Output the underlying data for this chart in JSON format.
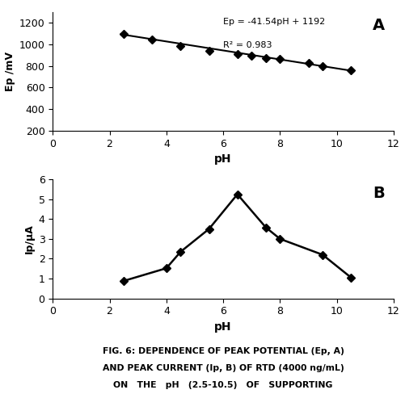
{
  "plot_A": {
    "ph_values": [
      2.5,
      3.5,
      4.5,
      5.5,
      6.5,
      7.0,
      7.5,
      8.0,
      9.0,
      9.5,
      10.5
    ],
    "ep_values": [
      1098,
      1045,
      980,
      940,
      910,
      895,
      875,
      862,
      825,
      800,
      762
    ],
    "equation": "Ep = -41.54pH + 1192",
    "r2": "R² = 0.983",
    "xlabel": "pH",
    "ylabel": "Ep /mV",
    "xlim": [
      0,
      12
    ],
    "ylim": [
      200,
      1300
    ],
    "yticks": [
      200,
      400,
      600,
      800,
      1000,
      1200
    ],
    "xticks": [
      0,
      2,
      4,
      6,
      8,
      10,
      12
    ],
    "label": "A",
    "slope": -41.54,
    "intercept": 1192
  },
  "plot_B": {
    "ph_values": [
      2.5,
      4.0,
      4.5,
      5.5,
      6.5,
      7.5,
      8.0,
      9.5,
      10.5
    ],
    "ip_values": [
      0.88,
      1.52,
      2.35,
      3.5,
      5.25,
      3.58,
      3.0,
      2.2,
      1.05
    ],
    "xlabel": "pH",
    "ylabel": "Ip/μA",
    "xlim": [
      0,
      12
    ],
    "ylim": [
      0,
      6
    ],
    "yticks": [
      0,
      1,
      2,
      3,
      4,
      5,
      6
    ],
    "xticks": [
      0,
      2,
      4,
      6,
      8,
      10,
      12
    ],
    "label": "B"
  },
  "caption_lines": [
    "FIG. 6: DEPENDENCE OF PEAK POTENTIAL (Ep, A)",
    "AND PEAK CURRENT (Ip, B) OF RTD (4000 ng/mL)",
    "ON   THE   pH   (2.5-10.5)   OF   SUPPORTING"
  ],
  "background_color": "#ffffff",
  "line_color": "#000000",
  "marker_color": "#000000"
}
